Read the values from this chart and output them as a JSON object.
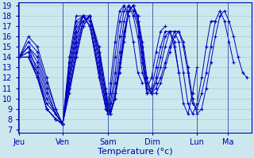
{
  "xlabel": "Température (°c)",
  "bg_color": "#cce8ee",
  "grid_color": "#aacccc",
  "line_color": "#0000bb",
  "marker_color": "#0000cc",
  "ylim_min": 7,
  "ylim_max": 19,
  "yticks": [
    7,
    8,
    9,
    10,
    11,
    12,
    13,
    14,
    15,
    16,
    17,
    18,
    19
  ],
  "day_labels": [
    "Jeu",
    "Ven",
    "Sam",
    "Dim",
    "Lun",
    "Ma"
  ],
  "day_x": [
    0.0,
    0.19,
    0.39,
    0.585,
    0.78,
    0.915
  ],
  "series": [
    {
      "x": [
        0.0,
        0.04,
        0.08,
        0.12,
        0.16,
        0.19,
        0.22,
        0.25,
        0.28,
        0.31,
        0.35,
        0.38,
        0.39,
        0.4,
        0.42,
        0.44,
        0.46,
        0.48,
        0.5,
        0.52,
        0.54,
        0.56,
        0.58,
        0.6,
        0.62,
        0.64,
        0.66,
        0.68,
        0.7,
        0.72,
        0.74,
        0.76,
        0.78,
        0.8,
        0.82,
        0.84,
        0.86,
        0.88,
        0.9,
        0.92,
        0.94,
        0.96,
        0.98,
        1.0
      ],
      "y": [
        14.0,
        16.0,
        15.0,
        12.0,
        9.0,
        7.5,
        11.0,
        14.5,
        17.5,
        18.0,
        14.5,
        10.5,
        9.0,
        8.5,
        10.5,
        13.0,
        16.0,
        18.5,
        19.0,
        18.0,
        15.5,
        12.0,
        10.5,
        10.5,
        11.5,
        13.0,
        14.5,
        16.0,
        16.5,
        15.5,
        13.0,
        10.0,
        8.5,
        9.0,
        11.0,
        13.5,
        16.0,
        18.0,
        18.5,
        17.5,
        16.0,
        14.0,
        12.5,
        12.0
      ]
    },
    {
      "x": [
        0.0,
        0.04,
        0.08,
        0.12,
        0.16,
        0.19,
        0.22,
        0.25,
        0.28,
        0.31,
        0.35,
        0.38,
        0.39,
        0.4,
        0.42,
        0.44,
        0.46,
        0.48,
        0.5,
        0.52,
        0.54,
        0.56,
        0.58,
        0.6,
        0.62,
        0.64,
        0.66,
        0.68,
        0.7,
        0.72,
        0.74,
        0.76,
        0.78,
        0.8,
        0.82,
        0.84,
        0.86,
        0.88,
        0.9,
        0.92,
        0.94
      ],
      "y": [
        14.0,
        15.5,
        14.5,
        11.5,
        9.0,
        7.5,
        10.5,
        14.0,
        17.0,
        18.0,
        15.0,
        11.0,
        9.5,
        8.5,
        10.0,
        12.5,
        15.5,
        18.5,
        19.0,
        18.0,
        15.0,
        11.5,
        10.5,
        11.0,
        12.0,
        13.5,
        15.0,
        16.5,
        16.5,
        15.0,
        12.5,
        9.5,
        9.0,
        10.5,
        12.5,
        15.0,
        17.5,
        18.5,
        17.5,
        15.5,
        13.5
      ]
    },
    {
      "x": [
        0.0,
        0.04,
        0.08,
        0.12,
        0.16,
        0.19,
        0.22,
        0.25,
        0.28,
        0.31,
        0.35,
        0.38,
        0.39,
        0.4,
        0.42,
        0.44,
        0.46,
        0.48,
        0.5,
        0.52,
        0.54,
        0.56,
        0.58,
        0.6,
        0.62,
        0.64,
        0.66,
        0.68,
        0.7,
        0.72,
        0.74,
        0.76,
        0.78,
        0.8,
        0.82,
        0.84,
        0.86
      ],
      "y": [
        14.0,
        15.0,
        14.0,
        11.0,
        8.5,
        7.5,
        11.0,
        14.0,
        17.0,
        18.0,
        14.5,
        10.5,
        9.0,
        8.5,
        10.0,
        13.0,
        16.0,
        18.5,
        19.0,
        17.5,
        14.5,
        11.0,
        10.5,
        11.5,
        13.0,
        15.0,
        16.5,
        16.5,
        15.5,
        12.5,
        9.5,
        8.5,
        9.5,
        12.0,
        15.0,
        17.5,
        17.5
      ]
    },
    {
      "x": [
        0.0,
        0.04,
        0.08,
        0.12,
        0.16,
        0.19,
        0.22,
        0.25,
        0.28,
        0.31,
        0.35,
        0.38,
        0.39,
        0.4,
        0.42,
        0.44,
        0.46,
        0.48,
        0.5,
        0.52,
        0.54,
        0.56,
        0.58,
        0.6,
        0.62,
        0.64,
        0.66,
        0.68,
        0.7,
        0.72,
        0.74,
        0.76,
        0.78
      ],
      "y": [
        14.0,
        15.0,
        13.5,
        10.5,
        8.5,
        7.5,
        11.5,
        15.0,
        17.5,
        18.0,
        14.0,
        10.0,
        8.5,
        8.5,
        10.5,
        13.5,
        16.5,
        18.5,
        19.0,
        17.5,
        14.0,
        10.5,
        10.5,
        12.0,
        14.0,
        16.0,
        16.5,
        15.5,
        12.5,
        9.5,
        8.5,
        10.5,
        13.0
      ]
    },
    {
      "x": [
        0.0,
        0.04,
        0.08,
        0.12,
        0.16,
        0.19,
        0.22,
        0.25,
        0.28,
        0.31,
        0.35,
        0.38,
        0.39,
        0.4,
        0.42,
        0.44,
        0.46,
        0.48,
        0.5,
        0.52,
        0.54,
        0.56,
        0.58,
        0.6,
        0.62,
        0.64,
        0.66,
        0.68,
        0.7
      ],
      "y": [
        14.0,
        14.5,
        13.0,
        10.0,
        8.5,
        7.5,
        12.0,
        15.5,
        18.0,
        18.0,
        13.5,
        9.5,
        8.5,
        9.0,
        11.5,
        14.5,
        17.5,
        19.0,
        18.5,
        17.0,
        13.5,
        10.5,
        11.0,
        13.0,
        15.0,
        16.5,
        16.5,
        15.0,
        12.5
      ]
    },
    {
      "x": [
        0.0,
        0.04,
        0.08,
        0.12,
        0.16,
        0.19,
        0.22,
        0.25,
        0.28,
        0.31,
        0.35,
        0.38,
        0.39,
        0.4,
        0.42,
        0.44,
        0.46,
        0.48,
        0.5,
        0.52,
        0.54,
        0.56,
        0.58,
        0.6,
        0.62,
        0.64
      ],
      "y": [
        14.0,
        14.0,
        12.5,
        9.5,
        8.5,
        7.5,
        12.0,
        16.0,
        18.0,
        17.5,
        13.0,
        9.5,
        8.5,
        9.5,
        12.5,
        16.0,
        18.5,
        19.0,
        18.0,
        16.0,
        12.5,
        11.0,
        12.0,
        14.5,
        16.5,
        17.0
      ]
    },
    {
      "x": [
        0.0,
        0.04,
        0.08,
        0.12,
        0.16,
        0.19,
        0.22,
        0.25,
        0.28,
        0.31,
        0.35,
        0.38,
        0.39,
        0.4,
        0.42,
        0.44,
        0.46,
        0.48,
        0.5,
        0.52,
        0.54
      ],
      "y": [
        14.0,
        14.0,
        12.0,
        9.0,
        8.0,
        7.5,
        12.5,
        16.5,
        18.0,
        17.0,
        12.5,
        9.0,
        8.5,
        10.5,
        14.0,
        17.5,
        19.0,
        18.0,
        15.5,
        12.5,
        11.5
      ]
    },
    {
      "x": [
        0.0,
        0.04,
        0.08,
        0.12,
        0.16,
        0.19,
        0.22,
        0.25,
        0.28,
        0.31,
        0.35,
        0.38,
        0.39,
        0.4,
        0.42,
        0.44,
        0.46
      ],
      "y": [
        14.0,
        14.0,
        12.0,
        9.0,
        8.0,
        7.5,
        13.0,
        17.0,
        18.0,
        17.0,
        12.0,
        9.0,
        8.5,
        11.5,
        15.5,
        18.5,
        19.0
      ]
    },
    {
      "x": [
        0.0,
        0.04,
        0.08,
        0.12,
        0.16,
        0.19,
        0.22,
        0.25,
        0.28,
        0.31,
        0.35
      ],
      "y": [
        14.0,
        15.0,
        12.5,
        9.0,
        8.0,
        7.5,
        13.5,
        17.5,
        18.0,
        17.0,
        12.5
      ]
    },
    {
      "x": [
        0.0,
        0.04,
        0.08,
        0.12,
        0.16,
        0.19,
        0.22,
        0.25,
        0.28
      ],
      "y": [
        14.0,
        14.5,
        12.0,
        9.0,
        8.0,
        7.5,
        14.0,
        18.0,
        18.0
      ]
    }
  ]
}
